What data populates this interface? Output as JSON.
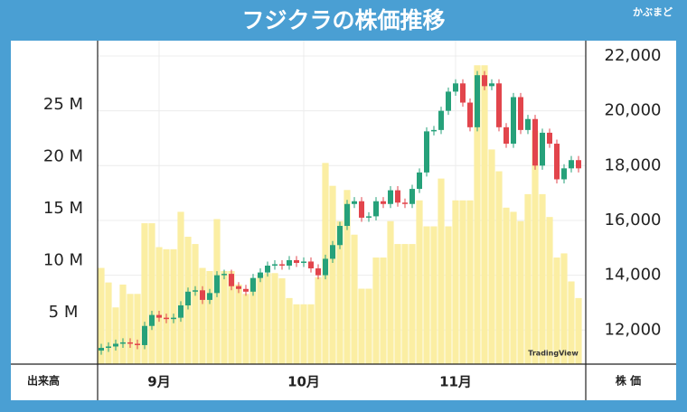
{
  "chart_data": {
    "type": "candlestick",
    "title": "フジクラの株価推移",
    "brand": "かぶまど",
    "watermark": "TradingView",
    "volume_axis_label": "出来高",
    "price_axis_label": "株 価",
    "categories": [
      null,
      null,
      null,
      null,
      null,
      null,
      null,
      null,
      "9月",
      null,
      null,
      null,
      null,
      null,
      null,
      null,
      null,
      null,
      null,
      null,
      null,
      null,
      null,
      null,
      null,
      null,
      null,
      null,
      "10月",
      null,
      null,
      null,
      null,
      null,
      null,
      null,
      null,
      null,
      null,
      null,
      null,
      null,
      null,
      null,
      null,
      null,
      null,
      null,
      null,
      "11月",
      null,
      null,
      null,
      null,
      null,
      null,
      null,
      null,
      null,
      null,
      null,
      null,
      null,
      null,
      null,
      null,
      null
    ],
    "open": [
      11250,
      11350,
      11400,
      11500,
      11550,
      11500,
      11450,
      12150,
      12550,
      12450,
      12400,
      12450,
      12900,
      13400,
      13450,
      13100,
      13350,
      14000,
      14050,
      13600,
      13500,
      13400,
      13900,
      14100,
      14350,
      14400,
      14350,
      14550,
      14450,
      14500,
      14250,
      14000,
      14600,
      15100,
      15800,
      16600,
      16700,
      16100,
      16150,
      16700,
      16600,
      17100,
      16650,
      16600,
      17150,
      17750,
      19250,
      19300,
      20000,
      20700,
      21000,
      20300,
      19400,
      21300,
      20900,
      21000,
      19400,
      18800,
      20500,
      19300,
      19700,
      18000,
      19200,
      18800,
      17500,
      17900,
      18200
    ],
    "high": [
      11500,
      11550,
      11650,
      11700,
      11700,
      11650,
      12300,
      12700,
      12700,
      12600,
      12600,
      13050,
      13550,
      13600,
      13600,
      13500,
      14150,
      14200,
      14200,
      13750,
      13650,
      14050,
      14250,
      14500,
      14550,
      14550,
      14700,
      14700,
      14650,
      14650,
      14400,
      14750,
      15250,
      15950,
      16750,
      16850,
      16850,
      16300,
      16850,
      16850,
      17250,
      17250,
      16800,
      17300,
      17900,
      19400,
      19450,
      20150,
      20850,
      21150,
      21150,
      20450,
      21450,
      21450,
      21150,
      21150,
      19550,
      20650,
      20650,
      19850,
      19850,
      19350,
      19350,
      18950,
      18050,
      18350,
      18350
    ],
    "low": [
      11100,
      11200,
      11250,
      11350,
      11350,
      11300,
      11300,
      12000,
      12300,
      12250,
      12250,
      12300,
      12750,
      13250,
      12950,
      12950,
      13200,
      13850,
      13450,
      13350,
      13250,
      13250,
      13750,
      13950,
      14200,
      14200,
      14200,
      14300,
      14300,
      14100,
      13850,
      13850,
      14450,
      14950,
      15650,
      16450,
      15950,
      15950,
      16000,
      16450,
      16450,
      16500,
      16450,
      16450,
      17000,
      17600,
      19100,
      19150,
      19850,
      20550,
      20150,
      19250,
      19250,
      20750,
      20750,
      19250,
      18650,
      18650,
      19150,
      19150,
      17850,
      17850,
      18650,
      17350,
      17350,
      17750,
      17750
    ],
    "close": [
      11350,
      11400,
      11500,
      11550,
      11500,
      11450,
      12150,
      12550,
      12450,
      12400,
      12450,
      12900,
      13400,
      13450,
      13100,
      13350,
      14000,
      14050,
      13600,
      13500,
      13400,
      13900,
      14100,
      14350,
      14400,
      14350,
      14550,
      14450,
      14500,
      14250,
      14000,
      14600,
      15100,
      15800,
      16600,
      16700,
      16100,
      16150,
      16700,
      16600,
      17100,
      16650,
      16600,
      17150,
      17750,
      19250,
      19300,
      20000,
      20700,
      21000,
      20300,
      19400,
      21300,
      20900,
      21000,
      19400,
      18800,
      20500,
      19300,
      19700,
      18000,
      19200,
      18800,
      17500,
      17900,
      18200,
      17900
    ],
    "up_color": "#26a17a",
    "down_color": "#e2454c",
    "volume": {
      "axis": "y2",
      "color": "#fbeea3",
      "values": [
        9.3,
        7.9,
        5.5,
        7.7,
        6.8,
        6.8,
        13.6,
        13.6,
        11.3,
        11.1,
        11.1,
        14.7,
        12.3,
        11.6,
        9.3,
        9.0,
        14.0,
        9.0,
        9.0,
        7.7,
        6.8,
        8.3,
        8.6,
        8.8,
        8.8,
        8.3,
        6.4,
        5.8,
        5.8,
        5.8,
        8.4,
        19.4,
        17.2,
        13.8,
        16.8,
        12.5,
        7.3,
        7.3,
        10.3,
        10.3,
        13.8,
        11.6,
        11.6,
        11.6,
        15.8,
        13.3,
        13.3,
        17.9,
        13.3,
        15.8,
        15.8,
        15.8,
        28.8,
        28.8,
        20.7,
        18.6,
        15.1,
        14.7,
        13.8,
        16.4,
        22.5,
        16.4,
        14.2,
        10.3,
        10.7,
        8.0,
        6.4
      ]
    },
    "ylim": [
      10740,
      22230
    ],
    "yticks": [
      {
        "value": 12000,
        "label": "12,000"
      },
      {
        "value": 14000,
        "label": "14,000"
      },
      {
        "value": 16000,
        "label": "16,000"
      },
      {
        "value": 18000,
        "label": "18,000"
      },
      {
        "value": 20000,
        "label": "20,000"
      },
      {
        "value": 22000,
        "label": "22,000"
      }
    ],
    "y2lim": [
      0,
      30.3
    ],
    "y2ticks": [
      {
        "value": 5,
        "label": "5 M"
      },
      {
        "value": 10,
        "label": "10 M"
      },
      {
        "value": 15,
        "label": "15 M"
      },
      {
        "value": 20,
        "label": "20 M"
      },
      {
        "value": 25,
        "label": "25 M"
      }
    ],
    "grid": true
  }
}
